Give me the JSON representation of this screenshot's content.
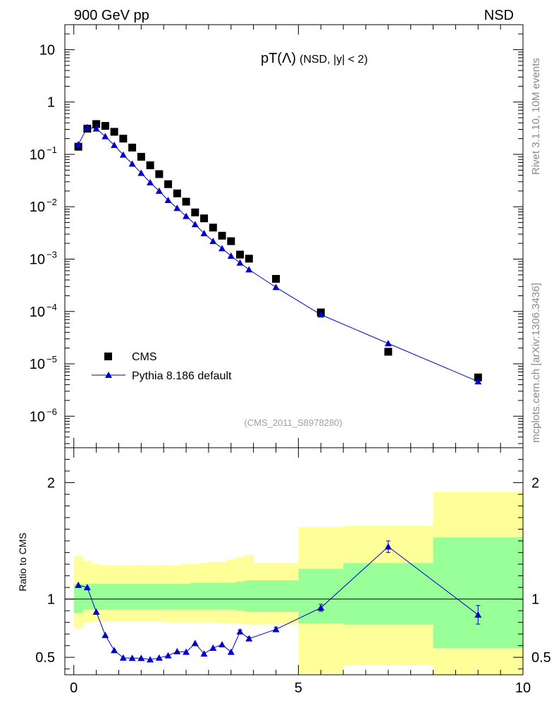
{
  "header": {
    "left": "900 GeV pp",
    "right": "NSD"
  },
  "side_labels": {
    "top": "Rivet 3.1.10,  10M events",
    "bottom": "mcplots.cern.ch [arXiv:1306.3436]"
  },
  "colors": {
    "mc": "#0000cc",
    "data": "#000000",
    "band_inner": "#99ff99",
    "band_outer": "#ffff99"
  },
  "chart_data": [
    {
      "type": "scatter",
      "title_main": "pT(Λ)",
      "title_sub": "(NSD, |y| < 2)",
      "watermark": "(CMS_2011_S8978280)",
      "scale": "log",
      "xlim": [
        -0.2,
        10.0
      ],
      "ylim": [
        2.5e-07,
        30
      ],
      "yticks": [
        {
          "value": 10,
          "label": "10"
        },
        {
          "value": 1,
          "label": "1"
        },
        {
          "value": 0.1,
          "label": "10",
          "exp": "−1"
        },
        {
          "value": 0.01,
          "label": "10",
          "exp": "−2"
        },
        {
          "value": 0.001,
          "label": "10",
          "exp": "−3"
        },
        {
          "value": 0.0001,
          "label": "10",
          "exp": "−4"
        },
        {
          "value": 1e-05,
          "label": "10",
          "exp": "−5"
        },
        {
          "value": 1e-06,
          "label": "10",
          "exp": "−6"
        }
      ],
      "legend": {
        "position": "bottom-left",
        "data_label": "CMS",
        "mc_label": "Pythia 8.186 default"
      },
      "series": [
        {
          "name": "CMS",
          "x": [
            0.1,
            0.3,
            0.5,
            0.7,
            0.9,
            1.1,
            1.3,
            1.5,
            1.7,
            1.9,
            2.1,
            2.3,
            2.5,
            2.7,
            2.9,
            3.1,
            3.3,
            3.5,
            3.7,
            3.9,
            4.5,
            5.5,
            7.0,
            9.0
          ],
          "y": [
            0.14,
            0.31,
            0.38,
            0.35,
            0.27,
            0.2,
            0.135,
            0.09,
            0.062,
            0.042,
            0.027,
            0.018,
            0.0125,
            0.0078,
            0.006,
            0.004,
            0.0028,
            0.0022,
            0.00122,
            0.00102,
            0.00042,
            9.6e-05,
            1.7e-05,
            5.5e-06
          ]
        },
        {
          "name": "Pythia 8.186 default",
          "x": [
            0.1,
            0.3,
            0.5,
            0.7,
            0.9,
            1.1,
            1.3,
            1.5,
            1.7,
            1.9,
            2.1,
            2.3,
            2.5,
            2.7,
            2.9,
            3.1,
            3.3,
            3.5,
            3.7,
            3.9,
            4.5,
            5.5,
            7.0,
            9.0
          ],
          "y": [
            0.155,
            0.33,
            0.31,
            0.22,
            0.15,
            0.098,
            0.066,
            0.044,
            0.029,
            0.02,
            0.0133,
            0.0094,
            0.0066,
            0.0046,
            0.0031,
            0.0022,
            0.0016,
            0.00115,
            0.00085,
            0.00063,
            0.00029,
            8.7e-05,
            2.45e-05,
            4.6e-06
          ]
        }
      ]
    },
    {
      "type": "line",
      "ylabel": "Ratio to CMS",
      "xlim": [
        -0.2,
        10.0
      ],
      "ylim": [
        0.35,
        2.3
      ],
      "xticks": [
        {
          "value": 0,
          "label": "0"
        },
        {
          "value": 5,
          "label": "5"
        },
        {
          "value": 10,
          "label": "10"
        }
      ],
      "yticks": [
        {
          "value": 0.5,
          "label": "0.5"
        },
        {
          "value": 1,
          "label": "1"
        },
        {
          "value": 2,
          "label": "2"
        }
      ],
      "bands": {
        "edges": [
          0.0,
          0.2,
          0.4,
          0.6,
          0.8,
          1.0,
          1.2,
          1.4,
          1.6,
          1.8,
          2.0,
          2.2,
          2.4,
          2.6,
          2.8,
          3.0,
          3.2,
          3.4,
          3.6,
          3.8,
          4.0,
          5.0,
          6.0,
          8.0,
          10.0
        ],
        "inner_lo": [
          0.88,
          0.91,
          0.91,
          0.91,
          0.91,
          0.91,
          0.91,
          0.91,
          0.91,
          0.91,
          0.91,
          0.91,
          0.91,
          0.91,
          0.91,
          0.91,
          0.91,
          0.91,
          0.9,
          0.89,
          0.89,
          0.79,
          0.78,
          0.58
        ],
        "inner_hi": [
          1.13,
          1.13,
          1.13,
          1.13,
          1.13,
          1.13,
          1.13,
          1.13,
          1.13,
          1.13,
          1.13,
          1.13,
          1.13,
          1.14,
          1.14,
          1.14,
          1.14,
          1.14,
          1.15,
          1.16,
          1.16,
          1.26,
          1.31,
          1.53
        ],
        "outer_lo": [
          0.75,
          0.8,
          0.81,
          0.81,
          0.81,
          0.81,
          0.81,
          0.81,
          0.81,
          0.81,
          0.8,
          0.8,
          0.8,
          0.8,
          0.8,
          0.8,
          0.79,
          0.79,
          0.79,
          0.78,
          0.78,
          0.36,
          0.43,
          0.35
        ],
        "outer_hi": [
          1.37,
          1.33,
          1.3,
          1.29,
          1.29,
          1.29,
          1.29,
          1.29,
          1.29,
          1.29,
          1.29,
          1.29,
          1.3,
          1.3,
          1.31,
          1.32,
          1.32,
          1.34,
          1.36,
          1.38,
          1.31,
          1.62,
          1.63,
          1.92
        ]
      },
      "series": [
        {
          "name": "Pythia 8.186 default",
          "x": [
            0.1,
            0.3,
            0.5,
            0.7,
            0.9,
            1.1,
            1.3,
            1.5,
            1.7,
            1.9,
            2.1,
            2.3,
            2.5,
            2.7,
            2.9,
            3.1,
            3.3,
            3.5,
            3.7,
            3.9,
            4.5,
            5.5,
            7.0,
            9.0
          ],
          "y": [
            1.12,
            1.1,
            0.89,
            0.69,
            0.56,
            0.495,
            0.493,
            0.492,
            0.48,
            0.495,
            0.515,
            0.55,
            0.545,
            0.62,
            0.53,
            0.58,
            0.61,
            0.545,
            0.72,
            0.66,
            0.74,
            0.925,
            1.45,
            0.865
          ],
          "err": [
            0.01,
            0.01,
            0.01,
            0.01,
            0.01,
            0.01,
            0.01,
            0.01,
            0.01,
            0.01,
            0.01,
            0.01,
            0.01,
            0.01,
            0.01,
            0.01,
            0.01,
            0.01,
            0.015,
            0.015,
            0.02,
            0.03,
            0.05,
            0.08
          ]
        }
      ],
      "reference_line": 1
    }
  ]
}
